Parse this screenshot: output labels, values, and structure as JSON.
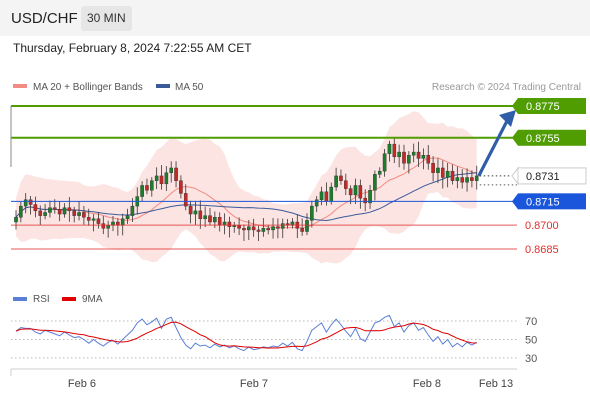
{
  "header": {
    "pair": "USD/CHF",
    "timeframe": "30 MIN"
  },
  "timestamp": "Thursday, February 8, 2024 7:22:55 AM CET",
  "legend": {
    "ma20_label": "MA 20 + Bollinger Bands",
    "ma50_label": "MA 50",
    "ma20_color": "#f28b82",
    "ma50_color": "#3a5a9a"
  },
  "source_text": "Research © 2024 Trading Central",
  "rsi_legend": {
    "rsi_label": "RSI",
    "ma_label": "9MA",
    "rsi_color": "#5b7fd6",
    "ma_color": "#e00000"
  },
  "chart_data": [
    {
      "type": "candlestick",
      "pair": "USD/CHF",
      "interval": "30 MIN",
      "x_ticks": [
        "Feb 6",
        "Feb 7",
        "Feb 8",
        "Feb 13"
      ],
      "levels": [
        {
          "value": 0.8775,
          "label": "0.8775",
          "kind": "resistance",
          "color": "#4f9d00"
        },
        {
          "value": 0.8755,
          "label": "0.8755",
          "kind": "resistance",
          "color": "#4f9d00"
        },
        {
          "value": 0.8731,
          "label": "0.8731",
          "kind": "last-price",
          "color": "#222222"
        },
        {
          "value": 0.8715,
          "label": "0.8715",
          "kind": "pivot",
          "color": "#1a56db"
        },
        {
          "value": 0.87,
          "label": "0.8700",
          "kind": "support",
          "color": "#e03030"
        },
        {
          "value": 0.8685,
          "label": "0.8685",
          "kind": "support",
          "color": "#e03030"
        }
      ],
      "closes": [
        0.8705,
        0.8712,
        0.8716,
        0.8713,
        0.8709,
        0.8706,
        0.8708,
        0.8711,
        0.871,
        0.8707,
        0.8711,
        0.8709,
        0.8706,
        0.8708,
        0.8705,
        0.8703,
        0.8704,
        0.8701,
        0.8698,
        0.87,
        0.8702,
        0.87,
        0.8704,
        0.8706,
        0.8712,
        0.8718,
        0.8725,
        0.8722,
        0.8728,
        0.8731,
        0.8726,
        0.8733,
        0.8736,
        0.8728,
        0.872,
        0.8712,
        0.8707,
        0.8709,
        0.8704,
        0.8706,
        0.8702,
        0.8705,
        0.87,
        0.8702,
        0.8699,
        0.87,
        0.8698,
        0.8697,
        0.8699,
        0.8697,
        0.8696,
        0.8698,
        0.8697,
        0.8699,
        0.8698,
        0.8701,
        0.87,
        0.8702,
        0.8698,
        0.8696,
        0.8703,
        0.8712,
        0.8716,
        0.8721,
        0.8715,
        0.8724,
        0.8731,
        0.8728,
        0.8723,
        0.8719,
        0.8725,
        0.8717,
        0.8714,
        0.8722,
        0.8732,
        0.8734,
        0.8745,
        0.8751,
        0.8743,
        0.8746,
        0.8739,
        0.8744,
        0.8746,
        0.8742,
        0.8744,
        0.8739,
        0.8733,
        0.8736,
        0.873,
        0.8734,
        0.8728,
        0.873,
        0.8727,
        0.873,
        0.8728,
        0.8731
      ],
      "rsi": [
        59,
        63,
        62,
        62,
        58,
        56,
        60,
        58,
        56,
        54,
        58,
        55,
        52,
        53,
        50,
        46,
        50,
        46,
        43,
        47,
        49,
        45,
        50,
        55,
        60,
        68,
        72,
        66,
        69,
        73,
        62,
        72,
        74,
        63,
        52,
        44,
        40,
        46,
        43,
        44,
        41,
        45,
        42,
        44,
        41,
        43,
        40,
        38,
        42,
        39,
        40,
        42,
        41,
        43,
        42,
        46,
        43,
        47,
        40,
        38,
        48,
        60,
        64,
        68,
        58,
        66,
        72,
        66,
        59,
        53,
        62,
        51,
        48,
        58,
        68,
        70,
        74,
        76,
        64,
        68,
        58,
        65,
        68,
        60,
        63,
        55,
        48,
        53,
        45,
        50,
        42,
        46,
        42,
        47,
        44,
        47
      ],
      "rsi_ticks": [
        70,
        50,
        30
      ],
      "ma_labels": [
        "MA 20 + Bollinger Bands",
        "MA 50"
      ],
      "projection": "arrow up toward 0.8775"
    }
  ]
}
